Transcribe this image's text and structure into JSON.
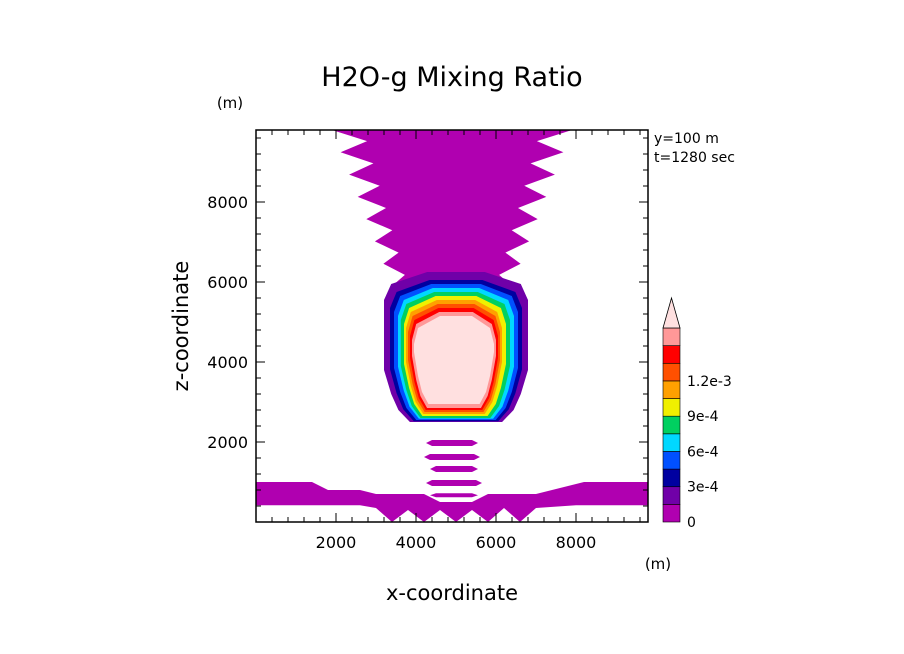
{
  "chart_data": {
    "type": "contour",
    "title": "H2O-g Mixing Ratio",
    "xlabel": "x-coordinate",
    "ylabel": "z-coordinate",
    "x_unit": "(m)",
    "y_unit": "(m)",
    "info": [
      "y=100 m",
      "t=1280 sec"
    ],
    "xlim": [
      0,
      9800
    ],
    "ylim": [
      0,
      9800
    ],
    "x_ticks": [
      2000,
      4000,
      6000,
      8000
    ],
    "y_ticks": [
      2000,
      4000,
      6000,
      8000
    ],
    "colorbar": {
      "levels": [
        0,
        0.00015,
        0.0003,
        0.00045,
        0.0006,
        0.00075,
        0.0009,
        0.00105,
        0.0012,
        0.00135
      ],
      "tick_labels": [
        {
          "value": 0,
          "label": "0"
        },
        {
          "value": 0.0003,
          "label": "3e-4"
        },
        {
          "value": 0.0006,
          "label": "6e-4"
        },
        {
          "value": 0.0009,
          "label": "9e-4"
        },
        {
          "value": 0.0012,
          "label": "1.2e-3"
        }
      ],
      "colors": [
        "#b000b0",
        "#7000a8",
        "#0000a0",
        "#0050ff",
        "#00d8ff",
        "#00d060",
        "#f0f000",
        "#ffa000",
        "#ff5000",
        "#ff0000",
        "#ff9898",
        "#ffe0e0"
      ],
      "extend": "max"
    },
    "regions": [
      {
        "level": 0,
        "shape": "upper_plume",
        "z_range": [
          5800,
          9800
        ]
      },
      {
        "level": 0,
        "shape": "bottom_band",
        "z_range": [
          0,
          1000
        ]
      },
      {
        "level": 0,
        "shape": "cloud_stem",
        "z_range": [
          700,
          2100
        ]
      },
      {
        "level": 1,
        "shape": "cloud_core_shell",
        "z_range": [
          2450,
          6200
        ]
      },
      {
        "level": 11,
        "shape": "cloud_core_max",
        "z_range": [
          2750,
          5200
        ],
        "x_range": [
          3900,
          6000
        ]
      }
    ]
  }
}
